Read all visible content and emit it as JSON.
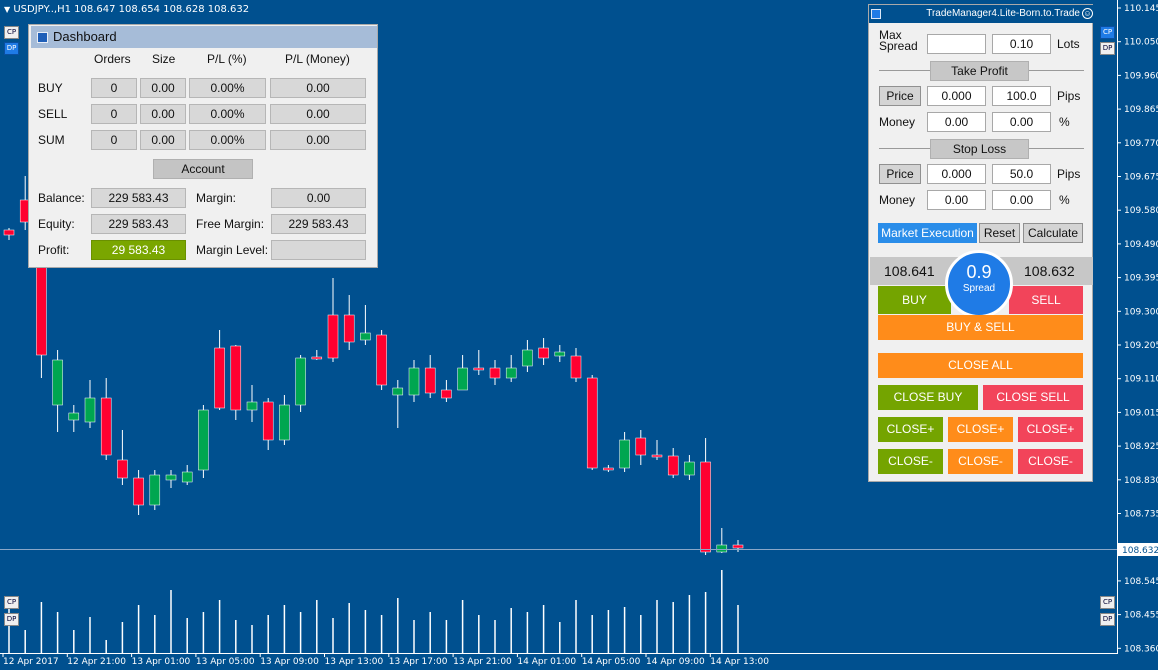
{
  "chart": {
    "title": "USDJPY..,H1  108.647 108.654 108.628 108.632",
    "price_axis": [
      "110.145",
      "110.050",
      "109.960",
      "109.865",
      "109.770",
      "109.675",
      "109.580",
      "109.490",
      "109.395",
      "109.300",
      "109.205",
      "109.110",
      "109.015",
      "108.925",
      "108.830",
      "108.735",
      "108.632",
      "108.545",
      "108.455",
      "108.360"
    ],
    "time_axis": [
      "12 Apr 2017",
      "12 Apr 21:00",
      "13 Apr 01:00",
      "13 Apr 05:00",
      "13 Apr 09:00",
      "13 Apr 13:00",
      "13 Apr 17:00",
      "13 Apr 21:00",
      "14 Apr 01:00",
      "14 Apr 05:00",
      "14 Apr 09:00",
      "14 Apr 13:00"
    ],
    "current_price": "108.632",
    "side_buttons": [
      "CP",
      "DP"
    ],
    "colors": {
      "bull": "#00a650",
      "bear": "#ff0030",
      "background": "#00508f"
    }
  },
  "dashboard": {
    "title": "Dashboard",
    "columns": [
      "Orders",
      "Size",
      "P/L (%)",
      "P/L (Money)"
    ],
    "rows": [
      {
        "label": "BUY",
        "orders": "0",
        "size": "0.00",
        "pl_pct": "0.00%",
        "pl_money": "0.00"
      },
      {
        "label": "SELL",
        "orders": "0",
        "size": "0.00",
        "pl_pct": "0.00%",
        "pl_money": "0.00"
      },
      {
        "label": "SUM",
        "orders": "0",
        "size": "0.00",
        "pl_pct": "0.00%",
        "pl_money": "0.00"
      }
    ],
    "account_label": "Account",
    "balance_label": "Balance:",
    "balance": "229 583.43",
    "equity_label": "Equity:",
    "equity": "229 583.43",
    "profit_label": "Profit:",
    "profit": "29 583.43",
    "margin_label": "Margin:",
    "margin": "0.00",
    "free_margin_label": "Free Margin:",
    "free_margin": "229 583.43",
    "margin_level_label": "Margin Level:",
    "margin_level": ""
  },
  "trade_manager": {
    "title": "TradeManager4.Lite-Born.to.Trade",
    "max_label": "Max",
    "spread_label": "Spread",
    "max_spread_value": "",
    "lots_value": "0.10",
    "lots_label": "Lots",
    "take_profit_label": "Take Profit",
    "tp_price_btn": "Price",
    "tp_price": "0.000",
    "tp_pips": "100.0",
    "pips_label": "Pips",
    "money_label": "Money",
    "tp_money": "0.00",
    "tp_pct": "0.00",
    "pct_label": "%",
    "stop_loss_label": "Stop Loss",
    "sl_price_btn": "Price",
    "sl_price": "0.000",
    "sl_pips": "50.0",
    "sl_money": "0.00",
    "sl_pct": "0.00",
    "market_exec": "Market Execution",
    "reset": "Reset",
    "calculate": "Calculate",
    "bid": "108.641",
    "ask": "108.632",
    "spread_value": "0.9",
    "spread_caption": "Spread",
    "buy": "BUY",
    "sell": "SELL",
    "buy_sell": "BUY & SELL",
    "close_all": "CLOSE ALL",
    "close_buy": "CLOSE BUY",
    "close_sell": "CLOSE SELL",
    "close_plus": "CLOSE+",
    "close_minus": "CLOSE-",
    "colors": {
      "green": "#74a400",
      "orange": "#ff8c1a",
      "red": "#f2445a",
      "blue": "#2a8de9"
    }
  }
}
